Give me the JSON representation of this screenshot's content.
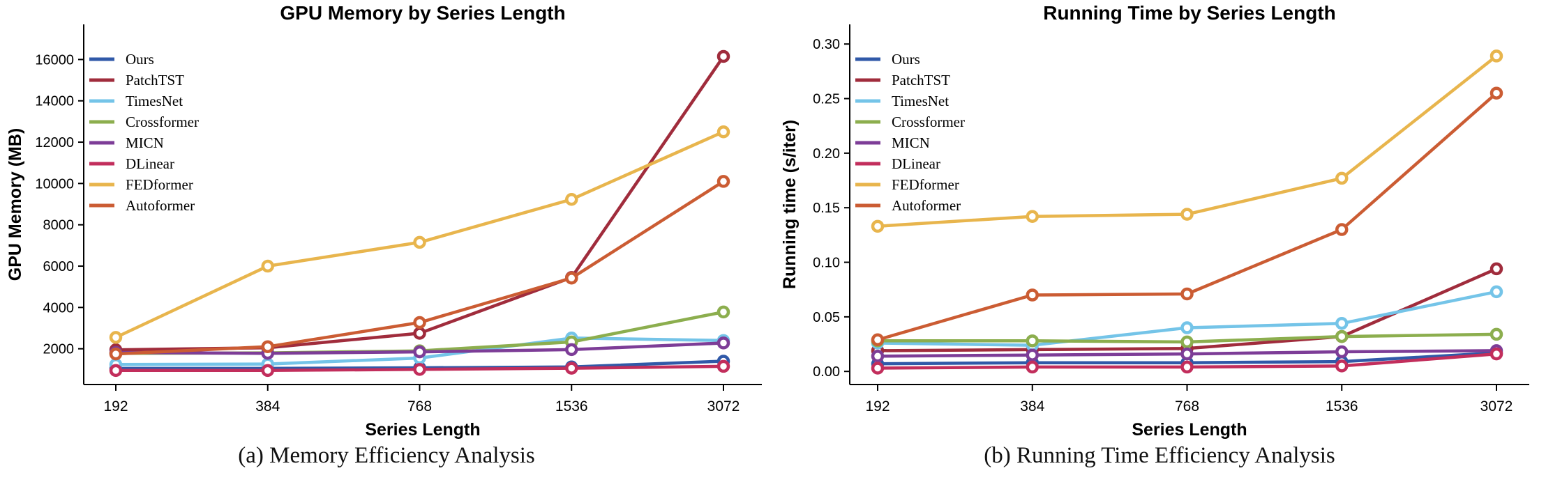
{
  "chart_data": [
    {
      "type": "line",
      "title": "GPU Memory by Series Length",
      "xlabel": "Series Length",
      "ylabel": "GPU Memory (MB)",
      "caption": "(a) Memory Efficiency Analysis",
      "categories": [
        "192",
        "384",
        "768",
        "1536",
        "3072"
      ],
      "x_values": [
        192,
        384,
        768,
        1536,
        3072
      ],
      "ylim": [
        270,
        17700
      ],
      "yticks": [
        2000,
        4000,
        6000,
        8000,
        10000,
        12000,
        14000,
        16000
      ],
      "ytick_labels": [
        "2000",
        "4000",
        "6000",
        "8000",
        "10000",
        "12000",
        "14000",
        "16000"
      ],
      "grid": false,
      "legend_position": "upper-left",
      "series": [
        {
          "name": "Ours",
          "color": "#3059A8",
          "values": [
            1050,
            1050,
            1080,
            1120,
            1400
          ]
        },
        {
          "name": "PatchTST",
          "color": "#A02C3C",
          "values": [
            1950,
            2050,
            2750,
            5450,
            16150
          ]
        },
        {
          "name": "TimesNet",
          "color": "#74C4E8",
          "values": [
            1240,
            1260,
            1550,
            2520,
            2400
          ]
        },
        {
          "name": "Crossformer",
          "color": "#8CAE4E",
          "values": [
            1780,
            1800,
            1900,
            2330,
            3780
          ]
        },
        {
          "name": "MICN",
          "color": "#7D3D97",
          "values": [
            1820,
            1780,
            1850,
            1960,
            2280
          ]
        },
        {
          "name": "DLinear",
          "color": "#C22E5C",
          "values": [
            950,
            950,
            1000,
            1060,
            1150
          ]
        },
        {
          "name": "FEDformer",
          "color": "#E8B54D",
          "values": [
            2550,
            6000,
            7150,
            9230,
            12500
          ]
        },
        {
          "name": "Autoformer",
          "color": "#CB5C33",
          "values": [
            1750,
            2100,
            3270,
            5420,
            10100
          ]
        }
      ]
    },
    {
      "type": "line",
      "title": "Running Time by Series Length",
      "xlabel": "Series Length",
      "ylabel": "Running time (s/iter)",
      "caption": "(b) Running Time Efficiency Analysis",
      "categories": [
        "192",
        "384",
        "768",
        "1536",
        "3072"
      ],
      "x_values": [
        192,
        384,
        768,
        1536,
        3072
      ],
      "ylim": [
        -0.012,
        0.318
      ],
      "yticks": [
        0.0,
        0.05,
        0.1,
        0.15,
        0.2,
        0.25,
        0.3
      ],
      "ytick_labels": [
        "0.00",
        "0.05",
        "0.10",
        "0.15",
        "0.20",
        "0.25",
        "0.30"
      ],
      "grid": false,
      "legend_position": "upper-left",
      "series": [
        {
          "name": "Ours",
          "color": "#3059A8",
          "values": [
            0.007,
            0.008,
            0.008,
            0.009,
            0.017
          ]
        },
        {
          "name": "PatchTST",
          "color": "#A02C3C",
          "values": [
            0.019,
            0.02,
            0.021,
            0.032,
            0.094
          ]
        },
        {
          "name": "TimesNet",
          "color": "#74C4E8",
          "values": [
            0.026,
            0.024,
            0.04,
            0.044,
            0.073
          ]
        },
        {
          "name": "Crossformer",
          "color": "#8CAE4E",
          "values": [
            0.028,
            0.028,
            0.027,
            0.032,
            0.034
          ]
        },
        {
          "name": "MICN",
          "color": "#7D3D97",
          "values": [
            0.014,
            0.015,
            0.016,
            0.018,
            0.019
          ]
        },
        {
          "name": "DLinear",
          "color": "#C22E5C",
          "values": [
            0.003,
            0.004,
            0.004,
            0.005,
            0.016
          ]
        },
        {
          "name": "FEDformer",
          "color": "#E8B54D",
          "values": [
            0.133,
            0.142,
            0.144,
            0.177,
            0.289
          ]
        },
        {
          "name": "Autoformer",
          "color": "#CB5C33",
          "values": [
            0.029,
            0.07,
            0.071,
            0.13,
            0.255
          ]
        }
      ]
    }
  ]
}
